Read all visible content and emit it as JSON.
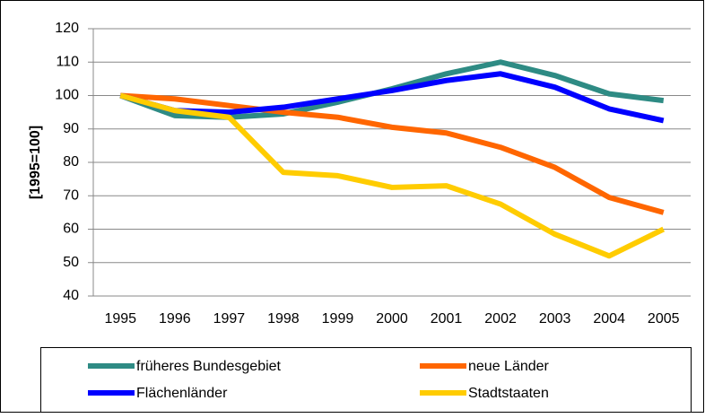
{
  "chart_data": {
    "type": "line",
    "y_label": "[1995=100]",
    "categories": [
      "1995",
      "1996",
      "1997",
      "1998",
      "1999",
      "2000",
      "2001",
      "2002",
      "2003",
      "2004",
      "2005"
    ],
    "series": [
      {
        "name": "früheres Bundesgebiet",
        "color": "#2e8b84",
        "values": [
          100,
          94,
          93.5,
          94.5,
          98,
          102,
          106.5,
          110,
          106,
          100.5,
          98.5
        ]
      },
      {
        "name": "neue Länder",
        "color": "#ff6600",
        "values": [
          100,
          99,
          97,
          95,
          93.5,
          90.5,
          88.8,
          84.5,
          78.5,
          69.5,
          65
        ]
      },
      {
        "name": "Flächenländer",
        "color": "#0000ff",
        "values": [
          100,
          95.5,
          95,
          96.5,
          99,
          101.5,
          104.5,
          106.5,
          102.5,
          96,
          92.5
        ]
      },
      {
        "name": "Stadtstaaten",
        "color": "#ffcc00",
        "values": [
          100,
          95.5,
          93.5,
          77,
          76,
          72.5,
          73,
          67.5,
          58.5,
          52,
          60
        ]
      }
    ],
    "ylim": [
      40,
      120
    ],
    "yticks": [
      40,
      50,
      60,
      70,
      80,
      90,
      100,
      110,
      120
    ],
    "grid": true
  }
}
